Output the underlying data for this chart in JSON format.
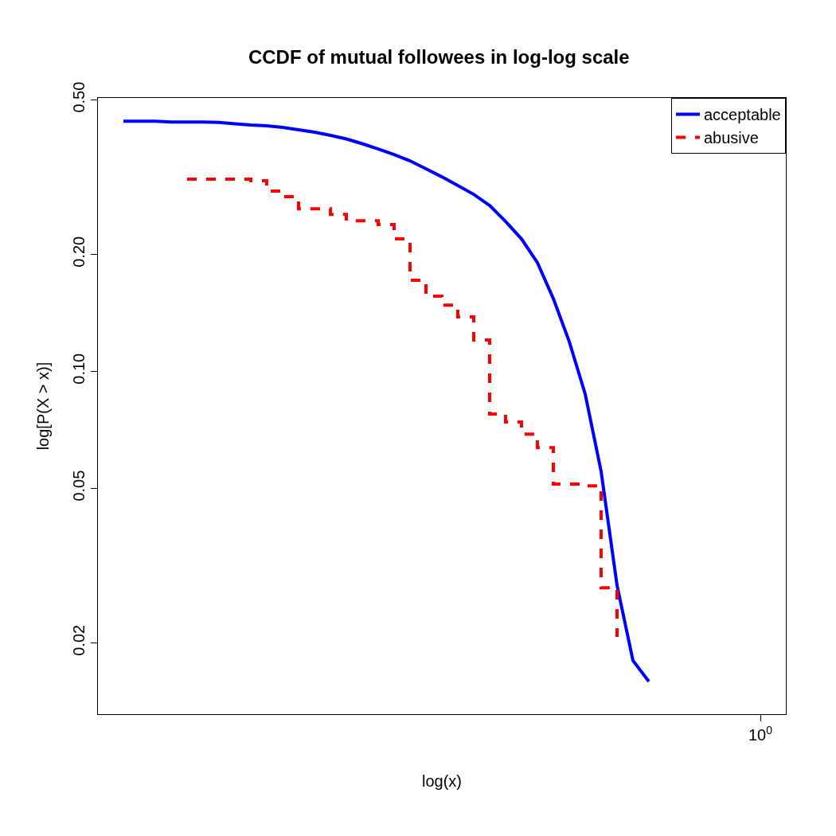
{
  "chart_data": {
    "type": "line",
    "title": "CCDF of mutual followees in log-log scale",
    "xlabel": "log(x)",
    "ylabel": "log[P(X > x)]",
    "log": "y",
    "ylim": [
      0.0131,
      0.505
    ],
    "yticks": [
      {
        "value": 0.5,
        "label": "0.50"
      },
      {
        "value": 0.2,
        "label": "0.20"
      },
      {
        "value": 0.1,
        "label": "0.10"
      },
      {
        "value": 0.05,
        "label": "0.05"
      },
      {
        "value": 0.02,
        "label": "0.02"
      }
    ],
    "categories": [
      null,
      null,
      null,
      null,
      null,
      null,
      null,
      null,
      null,
      null,
      null,
      null,
      null,
      null,
      null,
      null,
      null,
      null,
      null,
      null,
      null,
      null,
      null,
      null,
      null,
      null,
      null,
      null,
      null,
      null,
      null,
      null,
      null,
      null,
      null,
      null,
      null,
      null,
      null,
      null,
      "10$^{0}$"
    ],
    "legend": "top right",
    "series": [
      {
        "name": "acceptable",
        "color": "#0000ff",
        "line_style": "solid",
        "values": [
          0.44,
          0.44,
          0.44,
          0.438,
          0.438,
          0.438,
          0.4366,
          0.4333,
          0.4302,
          0.4282,
          0.4242,
          0.4182,
          0.4123,
          0.4046,
          0.3961,
          0.385,
          0.3733,
          0.3612,
          0.3478,
          0.3318,
          0.3164,
          0.3005,
          0.2852,
          0.2669,
          0.2429,
          0.219,
          0.1903,
          0.1537,
          0.1191,
          0.0873,
          0.0552,
          0.0281,
          0.018,
          0.0159,
          null,
          null,
          null,
          null,
          null,
          null,
          null
        ]
      },
      {
        "name": "abusive",
        "color": "#ff0000",
        "type": "step",
        "line_style": "dashed",
        "values": [
          null,
          null,
          null,
          null,
          0.312,
          0.312,
          0.312,
          0.312,
          0.3091,
          0.2907,
          0.2812,
          0.2619,
          0.2619,
          0.2534,
          0.244,
          0.244,
          0.2384,
          0.219,
          0.1714,
          0.1559,
          0.148,
          0.1379,
          0.1203,
          0.0776,
          0.074,
          0.0689,
          0.0636,
          0.0512,
          0.0512,
          0.0507,
          0.0277,
          0.0207,
          null,
          null,
          null,
          null,
          null,
          null,
          null,
          null,
          null
        ]
      }
    ]
  }
}
